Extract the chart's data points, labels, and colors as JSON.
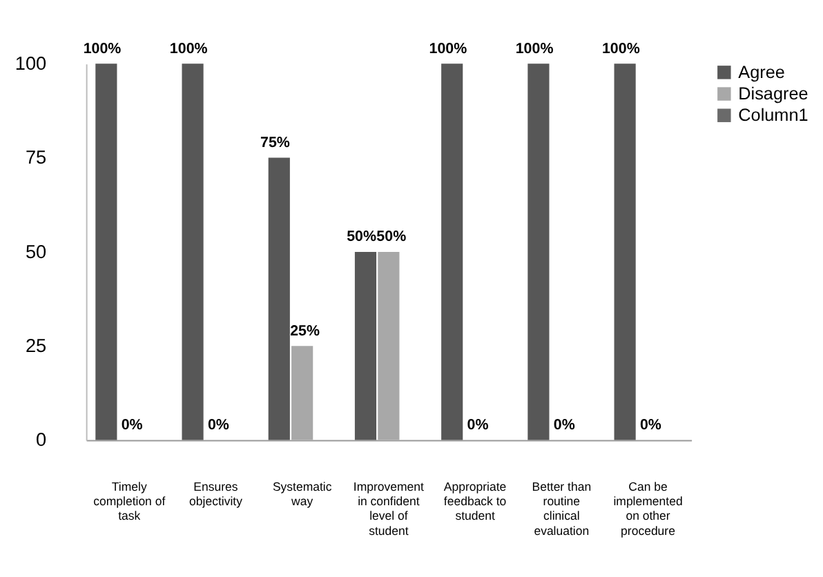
{
  "chart_data": {
    "type": "bar",
    "categories": [
      "Timely completion of task",
      "Ensures objectivity",
      "Systematic way",
      "Improvement in confident level of student",
      "Appropriate feedback to student",
      "Better than routine clinical evaluation",
      "Can be implemented on other procedure"
    ],
    "series": [
      {
        "name": "Agree",
        "color": "#575757",
        "values": [
          100,
          100,
          75,
          50,
          100,
          100,
          100
        ],
        "value_labels": [
          "100%",
          "100%",
          "75%",
          "50%",
          "100%",
          "100%",
          "100%"
        ]
      },
      {
        "name": "Disagree",
        "color": "#a8a8a8",
        "values": [
          0,
          0,
          25,
          50,
          0,
          0,
          0
        ],
        "value_labels": [
          "0%",
          "0%",
          "25%",
          "50%",
          "0%",
          "0%",
          "0%"
        ]
      },
      {
        "name": "Column1",
        "color": "#6a6a6a",
        "values": [
          null,
          null,
          null,
          null,
          null,
          null,
          null
        ]
      }
    ],
    "ylim": [
      0,
      100
    ],
    "yticks": [
      0,
      25,
      50,
      75,
      100
    ],
    "grid": false,
    "legend": "top right"
  }
}
